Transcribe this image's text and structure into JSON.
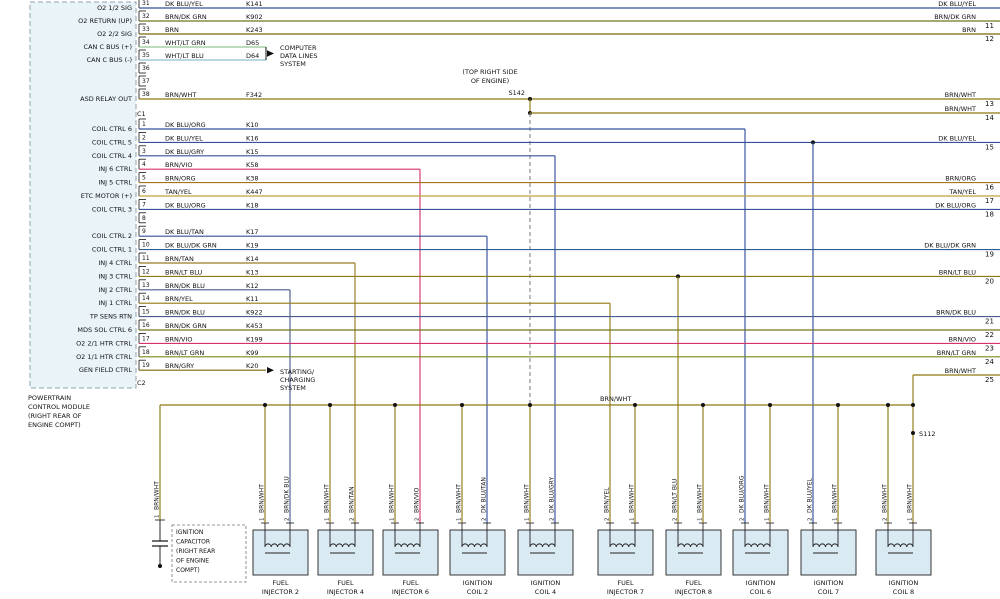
{
  "colors": {
    "BRN": "#7d6608",
    "BRN/WHT": "#8f7a12",
    "BRN/DK GRN": "#70761c",
    "BRN/DK BLU": "#4a5d8f",
    "BRN/LT BLU": "#8f7a12",
    "BRN/LT GRN": "#7a8a1a",
    "BRN/TAN": "#9a7b24",
    "BRN/YEL": "#8f7a12",
    "BRN/ORG": "#a5741a",
    "BRN/VIO": "#d6336c",
    "BRN/GRY": "#7d6608",
    "TAN/YEL": "#bfa23a",
    "DK BLU/YEL": "#35509c",
    "DK BLU/ORG": "#35509c",
    "DK BLU/GRY": "#35509c",
    "DK BLU/TAN": "#35509c",
    "DK BLU/DK GRN": "#2f5f8f",
    "WHT/LT GRN": "#93c693",
    "WHT/LT BLU": "#93bfd4"
  },
  "module": {
    "c1": "C1",
    "c2": "C2",
    "name_lines": [
      "POWERTRAIN",
      "CONTROL MODULE",
      "(RIGHT REAR OF",
      "ENGINE COMPT)"
    ]
  },
  "splices": {
    "s142": "S142",
    "s112": "S112",
    "s142_note": [
      "(TOP RIGHT SIDE",
      "OF ENGINE)"
    ]
  },
  "bus_label": "BRN/WHT",
  "bus_edge": {
    "label": "BRN/WHT",
    "num": "25"
  },
  "systems": {
    "computer": {
      "lines": [
        "COMPUTER",
        "DATA LINES",
        "SYSTEM"
      ]
    },
    "starting": {
      "lines": [
        "STARTING/",
        "CHARGING",
        "SYSTEM"
      ]
    }
  },
  "capacitor": {
    "pin": "1",
    "wire": "BRN/WHT",
    "label_lines": [
      "IGNITION",
      "CAPACITOR",
      "(RIGHT REAR",
      "OF ENGINE",
      "COMPT)"
    ]
  },
  "c1_rows": [
    {
      "pin": "31",
      "label": "O2 1/2 SIG",
      "wire": "DK BLU/YEL",
      "circuit": "K141",
      "route": "edge",
      "edge": {
        "label": "DK BLU/YEL",
        "num": ""
      }
    },
    {
      "pin": "32",
      "label": "O2 RETURN (UP)",
      "wire": "BRN/DK GRN",
      "circuit": "K902",
      "route": "edge",
      "edge": {
        "label": "BRN/DK GRN",
        "num": "11"
      }
    },
    {
      "pin": "33",
      "label": "O2 2/2 SIG",
      "wire": "BRN",
      "circuit": "K243",
      "route": "edge",
      "edge": {
        "label": "BRN",
        "num": "12"
      }
    },
    {
      "pin": "34",
      "label": "CAN C BUS (+)",
      "wire": "WHT/LT GRN",
      "circuit": "D65",
      "route": "system-computer"
    },
    {
      "pin": "35",
      "label": "CAN C BUS (-)",
      "wire": "WHT/LT BLU",
      "circuit": "D64",
      "route": "system-computer"
    },
    {
      "pin": "36"
    },
    {
      "pin": "37"
    },
    {
      "pin": "38",
      "label": "ASD RELAY OUT",
      "wire": "BRN/WHT",
      "circuit": "F342",
      "route": "edge+s142",
      "edge": {
        "label": "BRN/WHT",
        "num": "13"
      },
      "branch_edge": {
        "label": "BRN/WHT",
        "num": "14"
      }
    }
  ],
  "c2_rows": [
    {
      "pin": "1",
      "label": "COIL CTRL 6",
      "wire": "DK BLU/ORG",
      "circuit": "K10",
      "route": "drop",
      "drop": "ignition-coil-6"
    },
    {
      "pin": "2",
      "label": "COIL CTRL 5",
      "wire": "DK BLU/YEL",
      "circuit": "K16",
      "route": "edge+drop",
      "drop": "ignition-coil-7",
      "edge": {
        "label": "DK BLU/YEL",
        "num": "15"
      }
    },
    {
      "pin": "3",
      "label": "COIL CTRL 4",
      "wire": "DK BLU/GRY",
      "circuit": "K15",
      "route": "drop",
      "drop": "ignition-coil-4"
    },
    {
      "pin": "4",
      "label": "INJ 6 CTRL",
      "wire": "BRN/VIO",
      "circuit": "K58",
      "route": "drop",
      "drop": "fuel-injector-6"
    },
    {
      "pin": "5",
      "label": "INJ 5 CTRL",
      "wire": "BRN/ORG",
      "circuit": "K38",
      "route": "edge",
      "edge": {
        "label": "BRN/ORG",
        "num": "16"
      }
    },
    {
      "pin": "6",
      "label": "ETC MOTOR (+)",
      "wire": "TAN/YEL",
      "circuit": "K447",
      "route": "edge",
      "edge": {
        "label": "TAN/YEL",
        "num": "17"
      }
    },
    {
      "pin": "7",
      "label": "COIL CTRL 3",
      "wire": "DK BLU/ORG",
      "circuit": "K18",
      "route": "edge",
      "edge": {
        "label": "DK BLU/ORG",
        "num": "18"
      }
    },
    {
      "pin": "8"
    },
    {
      "pin": "9",
      "label": "COIL CTRL 2",
      "wire": "DK BLU/TAN",
      "circuit": "K17",
      "route": "drop",
      "drop": "ignition-coil-2"
    },
    {
      "pin": "10",
      "label": "COIL CTRL 1",
      "wire": "DK BLU/DK GRN",
      "circuit": "K19",
      "route": "edge",
      "edge": {
        "label": "DK BLU/DK GRN",
        "num": "19"
      }
    },
    {
      "pin": "11",
      "label": "INJ 4 CTRL",
      "wire": "BRN/TAN",
      "circuit": "K14",
      "route": "drop",
      "drop": "fuel-injector-4"
    },
    {
      "pin": "12",
      "label": "INJ 3 CTRL",
      "wire": "BRN/LT BLU",
      "circuit": "K13",
      "route": "edge+drop",
      "drop": "fuel-injector-8",
      "edge": {
        "label": "BRN/LT BLU",
        "num": "20"
      }
    },
    {
      "pin": "13",
      "label": "INJ 2 CTRL",
      "wire": "BRN/DK BLU",
      "circuit": "K12",
      "route": "drop",
      "drop": "fuel-injector-2"
    },
    {
      "pin": "14",
      "label": "INJ 1 CTRL",
      "wire": "BRN/YEL",
      "circuit": "K11",
      "route": "drop",
      "drop": "fuel-injector-7"
    },
    {
      "pin": "15",
      "label": "TP SENS RTN",
      "wire": "BRN/DK BLU",
      "circuit": "K922",
      "route": "edge",
      "edge": {
        "label": "BRN/DK BLU",
        "num": "21"
      }
    },
    {
      "pin": "16",
      "label": "MDS SOL CTRL 6",
      "wire": "BRN/DK GRN",
      "circuit": "K453",
      "route": "edge",
      "edge": {
        "label": "",
        "num": "22"
      }
    },
    {
      "pin": "17",
      "label": "O2 2/1 HTR CTRL",
      "wire": "BRN/VIO",
      "circuit": "K199",
      "route": "edge",
      "edge": {
        "label": "BRN/VIO",
        "num": "23"
      }
    },
    {
      "pin": "18",
      "label": "O2 1/1 HTR CTRL",
      "wire": "BRN/LT GRN",
      "circuit": "K99",
      "route": "edge",
      "edge": {
        "label": "BRN/LT GRN",
        "num": "24"
      }
    },
    {
      "pin": "19",
      "label": "GEN FIELD CTRL",
      "wire": "BRN/GRY",
      "circuit": "K20",
      "route": "system-starting"
    }
  ],
  "components": [
    {
      "id": "fuel-injector-2",
      "name_lines": [
        "FUEL",
        "INJECTOR 2"
      ],
      "pins": [
        {
          "num": "1",
          "wire": "BRN/WHT",
          "feed": "bus"
        },
        {
          "num": "2",
          "wire": "BRN/DK BLU",
          "feed": "control"
        }
      ]
    },
    {
      "id": "fuel-injector-4",
      "name_lines": [
        "FUEL",
        "INJECTOR 4"
      ],
      "pins": [
        {
          "num": "1",
          "wire": "BRN/WHT",
          "feed": "bus"
        },
        {
          "num": "2",
          "wire": "BRN/TAN",
          "feed": "control"
        }
      ]
    },
    {
      "id": "fuel-injector-6",
      "name_lines": [
        "FUEL",
        "INJECTOR 6"
      ],
      "pins": [
        {
          "num": "1",
          "wire": "BRN/WHT",
          "feed": "bus"
        },
        {
          "num": "2",
          "wire": "BRN/VIO",
          "feed": "control"
        }
      ]
    },
    {
      "id": "ignition-coil-2",
      "name_lines": [
        "IGNITION",
        "COIL 2"
      ],
      "pins": [
        {
          "num": "1",
          "wire": "BRN/WHT",
          "feed": "bus"
        },
        {
          "num": "2",
          "wire": "DK BLU/TAN",
          "feed": "control"
        }
      ]
    },
    {
      "id": "ignition-coil-4",
      "name_lines": [
        "IGNITION",
        "COIL 4"
      ],
      "pins": [
        {
          "num": "1",
          "wire": "BRN/WHT",
          "feed": "bus"
        },
        {
          "num": "2",
          "wire": "DK BLU/GRY",
          "feed": "control"
        }
      ]
    },
    {
      "id": "fuel-injector-7",
      "name_lines": [
        "FUEL",
        "INJECTOR 7"
      ],
      "pins": [
        {
          "num": "2",
          "wire": "BRN/YEL",
          "feed": "control"
        },
        {
          "num": "1",
          "wire": "BRN/WHT",
          "feed": "bus"
        }
      ]
    },
    {
      "id": "fuel-injector-8",
      "name_lines": [
        "FUEL",
        "INJECTOR 8"
      ],
      "pins": [
        {
          "num": "2",
          "wire": "BRN/LT BLU",
          "feed": "control"
        },
        {
          "num": "1",
          "wire": "BRN/WHT",
          "feed": "bus"
        }
      ]
    },
    {
      "id": "ignition-coil-6",
      "name_lines": [
        "IGNITION",
        "COIL 6"
      ],
      "pins": [
        {
          "num": "2",
          "wire": "DK BLU/ORG",
          "feed": "control"
        },
        {
          "num": "1",
          "wire": "BRN/WHT",
          "feed": "bus"
        }
      ]
    },
    {
      "id": "ignition-coil-7",
      "name_lines": [
        "IGNITION",
        "COIL 7"
      ],
      "pins": [
        {
          "num": "2",
          "wire": "DK BLU/YEL",
          "feed": "control"
        },
        {
          "num": "1",
          "wire": "BRN/WHT",
          "feed": "bus"
        }
      ]
    },
    {
      "id": "ignition-coil-8",
      "name_lines": [
        "IGNITION",
        "COIL 8"
      ],
      "pins": [
        {
          "num": "2",
          "wire": "BRN/WHT",
          "feed": "bus"
        },
        {
          "num": "1",
          "wire": "BRN/WHT",
          "feed": "s112"
        }
      ]
    }
  ]
}
